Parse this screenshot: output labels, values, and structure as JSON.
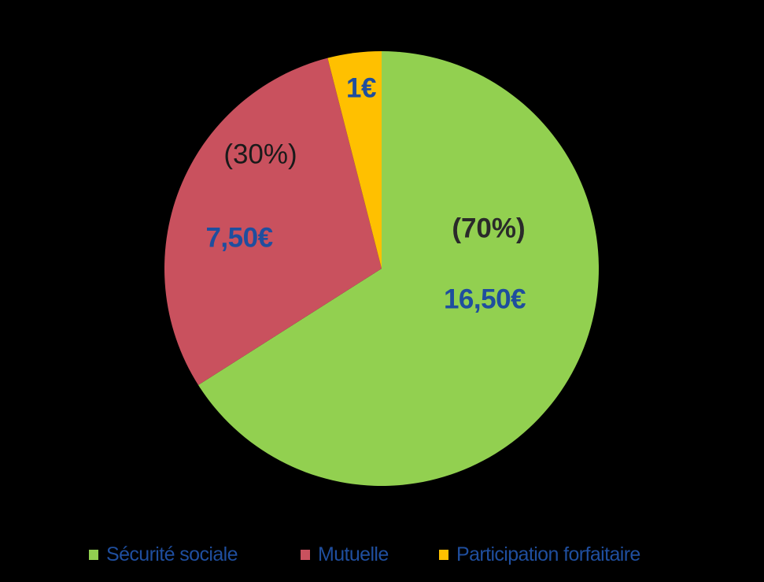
{
  "chart_data": {
    "type": "pie",
    "title": "",
    "categories": [
      "Sécurité sociale",
      "Mutuelle",
      "Participation forfaitaire"
    ],
    "values": [
      16.5,
      7.5,
      1
    ],
    "value_labels": [
      "16,50€",
      "7,50€",
      "1€"
    ],
    "percent_labels": [
      "(70%)",
      "(30%)",
      ""
    ],
    "colors": [
      "#92D050",
      "#C9515E",
      "#FFC000"
    ],
    "start_angle_deg": 0,
    "direction": "clockwise",
    "legend_position": "bottom",
    "center": [
      485,
      341
    ],
    "radius": 276
  },
  "labels": {
    "securite_value": "16,50€",
    "securite_pct": "(70%)",
    "mutuelle_value": "7,50€",
    "mutuelle_pct": "(30%)",
    "forfait_value": "1€"
  },
  "legend": {
    "items": [
      {
        "label": "Sécurité sociale",
        "color": "#92D050"
      },
      {
        "label": "Mutuelle",
        "color": "#C9515E"
      },
      {
        "label": "Participation forfaitaire",
        "color": "#FFC000"
      }
    ]
  },
  "colors": {
    "background": "#000000",
    "label_blue": "#1F4E9E",
    "label_dark": "#1a1a1a"
  }
}
